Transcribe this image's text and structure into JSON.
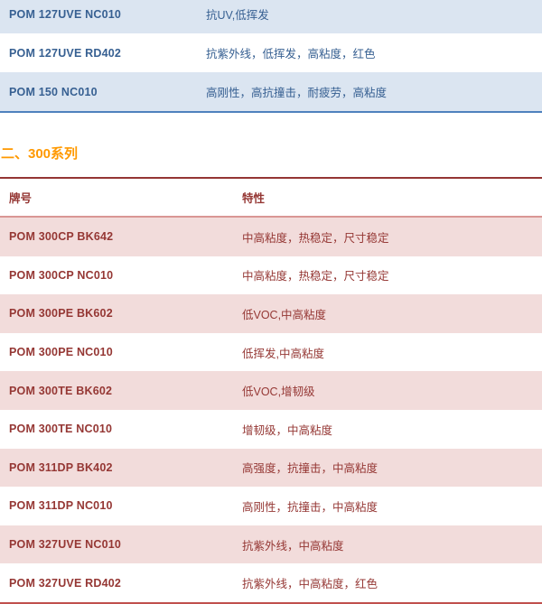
{
  "colors": {
    "blue_text": "#376092",
    "blue_row_bg": "#dbe5f1",
    "blue_border": "#4f81bd",
    "heading_orange": "#ff9900",
    "red_text": "#953734",
    "pink_row_bg": "#f2dcdb",
    "pink_header_border": "#d99694",
    "red_top_border": "#943634",
    "red_bottom_border": "#c0504d"
  },
  "series_100_table": {
    "rows": [
      {
        "grade": "POM 127UVE NC010",
        "features": "抗UV,低挥发"
      },
      {
        "grade": "POM 127UVE RD402",
        "features": "抗紫外线，低挥发，高粘度，红色"
      },
      {
        "grade": "POM 150 NC010",
        "features": "高刚性，高抗撞击，耐疲劳，高粘度"
      }
    ]
  },
  "section_300": {
    "heading": "二、300系列",
    "table": {
      "headers": {
        "grade": "牌号",
        "features": "特性"
      },
      "rows": [
        {
          "grade": "POM 300CP BK642",
          "features": "中高粘度，热稳定，尺寸稳定"
        },
        {
          "grade": "POM 300CP NC010",
          "features": "中高粘度，热稳定，尺寸稳定"
        },
        {
          "grade": "POM 300PE BK602",
          "features": "低VOC,中高粘度"
        },
        {
          "grade": "POM 300PE NC010",
          "features": "低挥发,中高粘度"
        },
        {
          "grade": "POM 300TE BK602",
          "features": "低VOC,增韧级"
        },
        {
          "grade": "POM 300TE NC010",
          "features": "增韧级，中高粘度"
        },
        {
          "grade": "POM 311DP BK402",
          "features": "高强度，抗撞击，中高粘度"
        },
        {
          "grade": "POM 311DP NC010",
          "features": "高刚性，抗撞击，中高粘度"
        },
        {
          "grade": "POM 327UVE NC010",
          "features": "抗紫外线，中高粘度"
        },
        {
          "grade": "POM 327UVE RD402",
          "features": "抗紫外线，中高粘度，红色"
        }
      ]
    }
  }
}
